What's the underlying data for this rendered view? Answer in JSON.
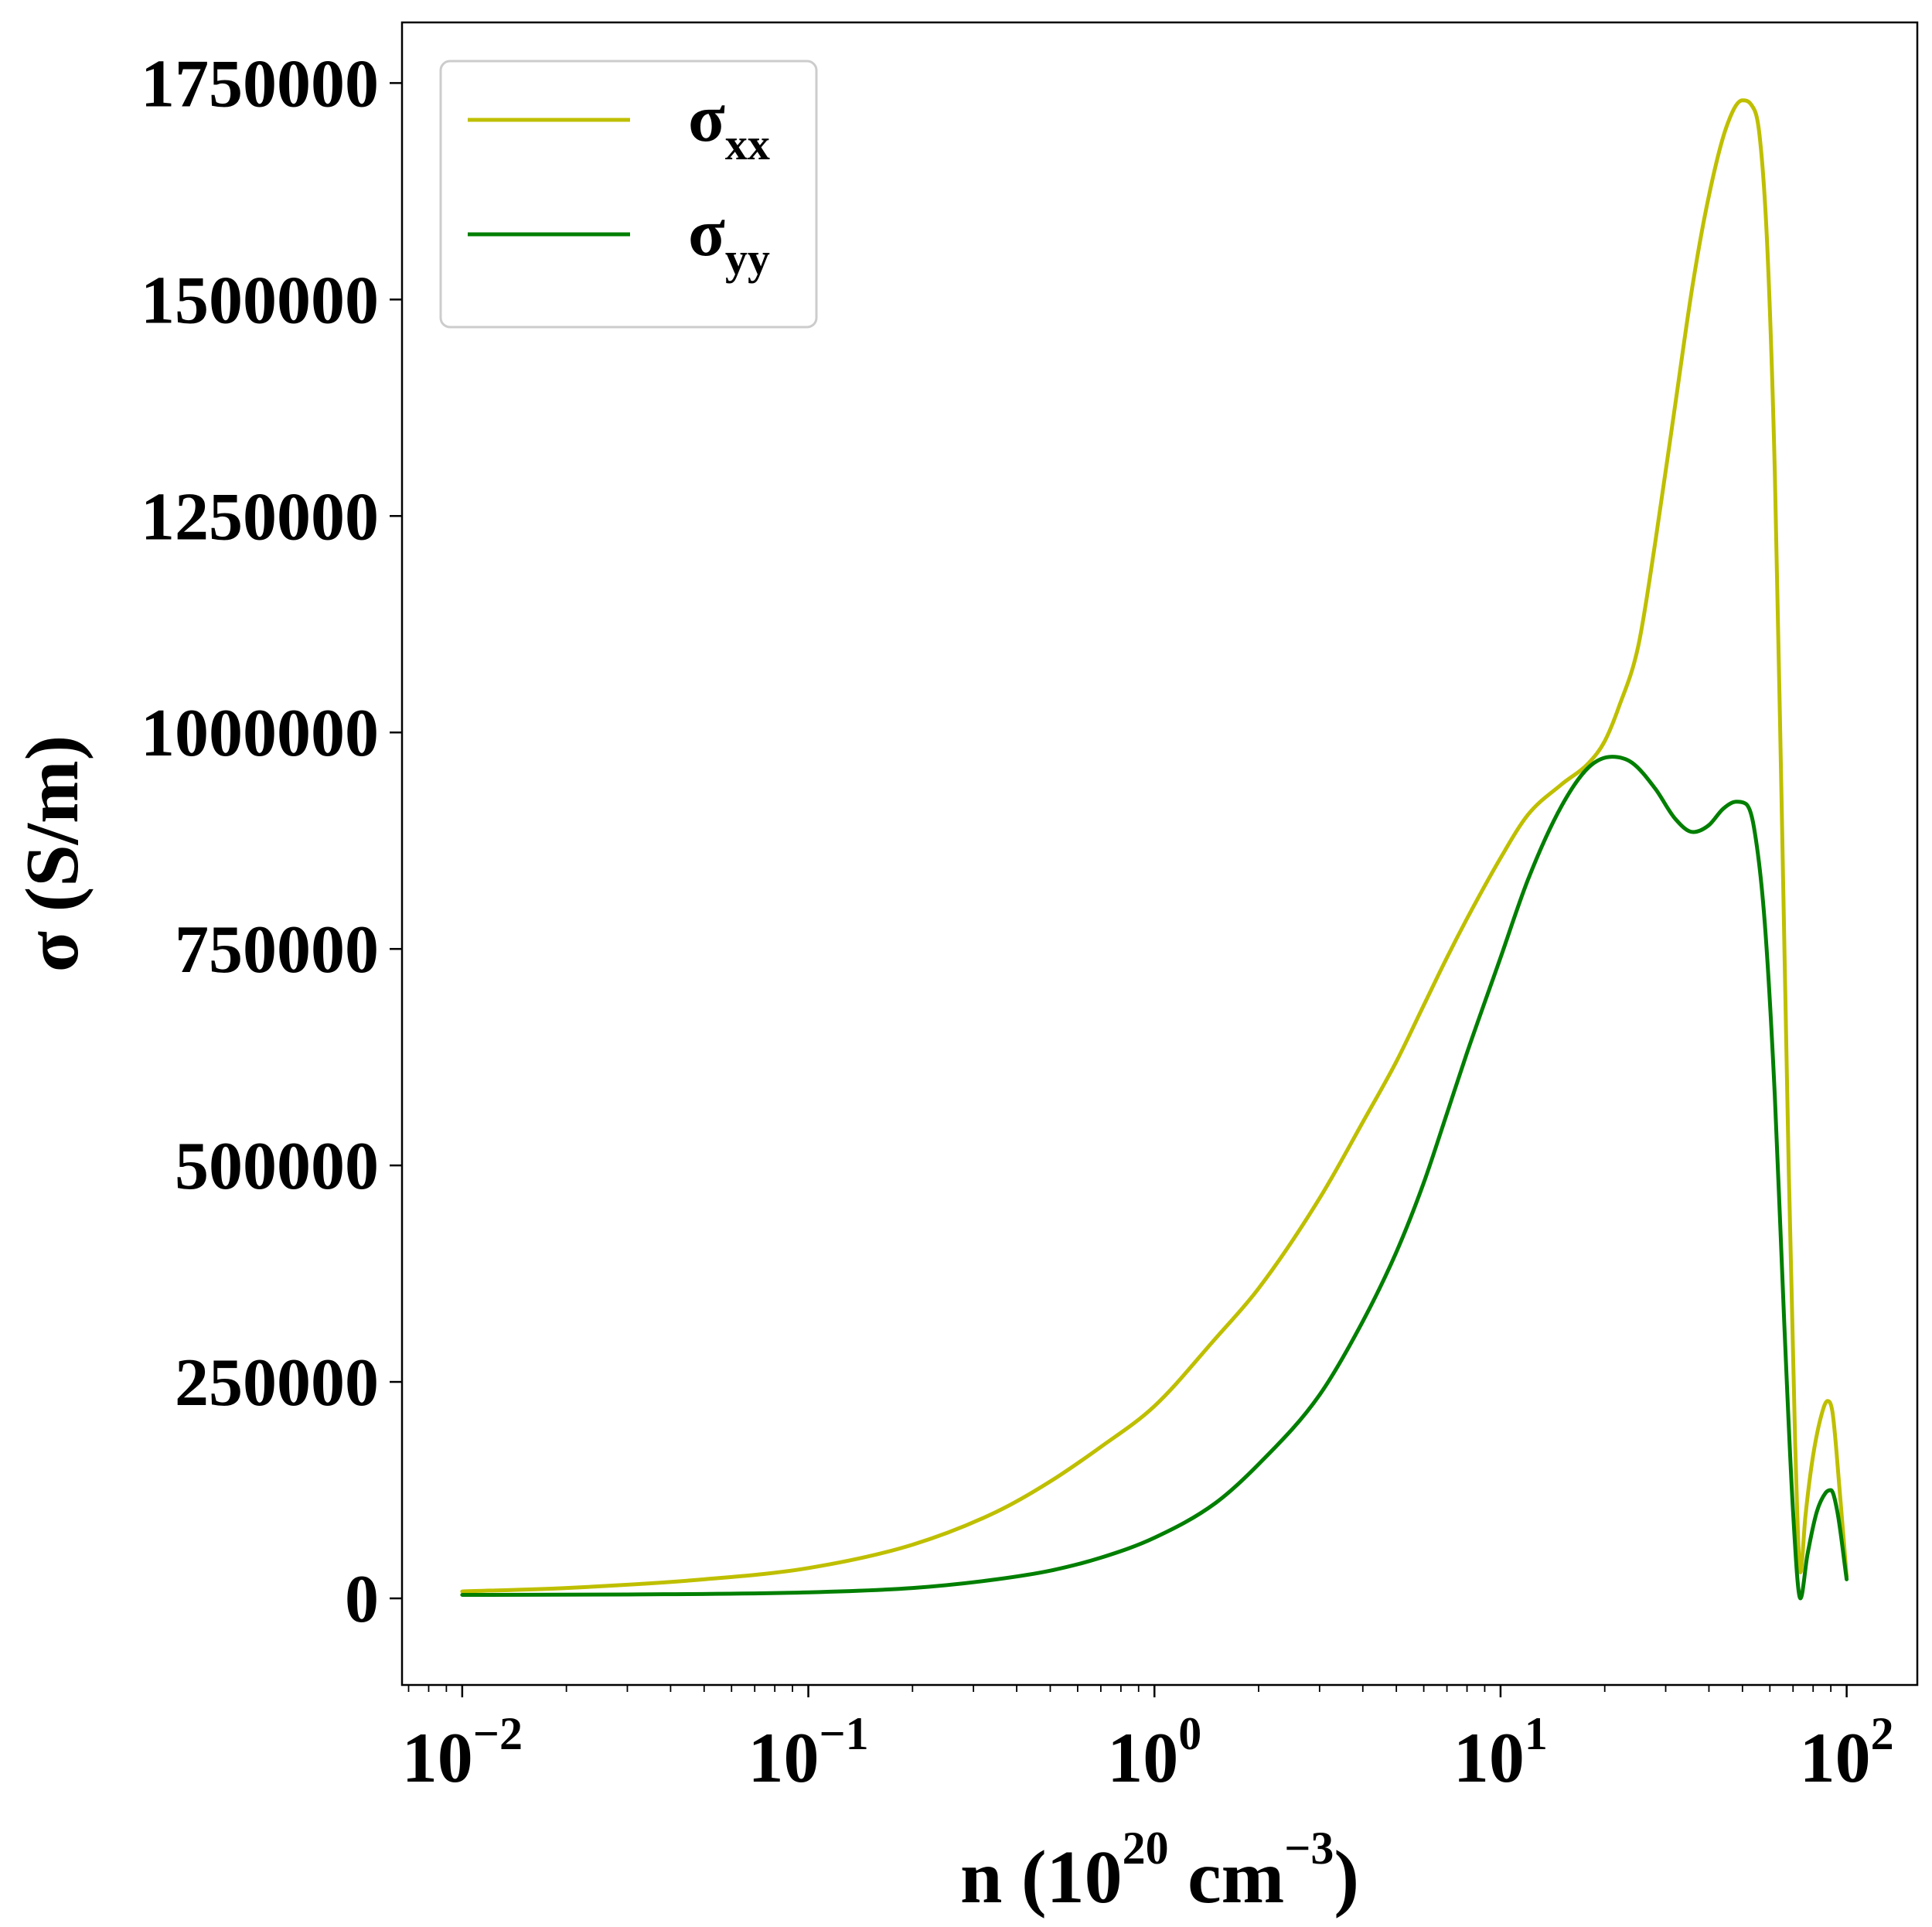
{
  "chart_data": {
    "type": "line",
    "xscale": "log",
    "xlim": [
      0.0067,
      160
    ],
    "ylim": [
      -100000,
      1820000
    ],
    "xlabel": {
      "prefix": "n (10",
      "exp1": "20",
      "middle": " cm",
      "exp2": "−3",
      "suffix": ")"
    },
    "ylabel": "σ (S/m)",
    "xticks": [
      {
        "base": "10",
        "exp": "−2",
        "value": 0.01
      },
      {
        "base": "10",
        "exp": "−1",
        "value": 0.1
      },
      {
        "base": "10",
        "exp": "0",
        "value": 1
      },
      {
        "base": "10",
        "exp": "1",
        "value": 10
      },
      {
        "base": "10",
        "exp": "2",
        "value": 100
      }
    ],
    "yticks": [
      {
        "label": "0",
        "value": 0
      },
      {
        "label": "250000",
        "value": 250000
      },
      {
        "label": "500000",
        "value": 500000
      },
      {
        "label": "750000",
        "value": 750000
      },
      {
        "label": "1000000",
        "value": 1000000
      },
      {
        "label": "1250000",
        "value": 1250000
      },
      {
        "label": "1500000",
        "value": 1500000
      },
      {
        "label": "1750000",
        "value": 1750000
      }
    ],
    "grid": false,
    "legend_position": "top-left",
    "series": [
      {
        "name": "σxx",
        "legend_base": "σ",
        "legend_sub": "xx",
        "color": "#bfbf00",
        "points": [
          [
            0.01,
            8000
          ],
          [
            0.02,
            12000
          ],
          [
            0.05,
            22000
          ],
          [
            0.1,
            35000
          ],
          [
            0.2,
            62000
          ],
          [
            0.35,
            100000
          ],
          [
            0.5,
            135000
          ],
          [
            0.7,
            175000
          ],
          [
            1.0,
            222000
          ],
          [
            1.5,
            300000
          ],
          [
            2.0,
            358000
          ],
          [
            3.0,
            462000
          ],
          [
            4.0,
            550000
          ],
          [
            5.0,
            620000
          ],
          [
            6.0,
            685000
          ],
          [
            7.0,
            740000
          ],
          [
            8.0,
            785000
          ],
          [
            10.0,
            855000
          ],
          [
            12.0,
            905000
          ],
          [
            15.0,
            940000
          ],
          [
            18.0,
            965000
          ],
          [
            20.0,
            990000
          ],
          [
            22.0,
            1030000
          ],
          [
            25.0,
            1100000
          ],
          [
            28.0,
            1220000
          ],
          [
            32.0,
            1380000
          ],
          [
            36.0,
            1520000
          ],
          [
            40.0,
            1620000
          ],
          [
            45.0,
            1700000
          ],
          [
            50.0,
            1730000
          ],
          [
            53.0,
            1725000
          ],
          [
            56.0,
            1690000
          ],
          [
            59.0,
            1560000
          ],
          [
            62.0,
            1300000
          ],
          [
            65.0,
            900000
          ],
          [
            68.0,
            500000
          ],
          [
            71.0,
            180000
          ],
          [
            73.5,
            30000
          ],
          [
            76.0,
            95000
          ],
          [
            80.0,
            165000
          ],
          [
            85.0,
            215000
          ],
          [
            88.0,
            228000
          ],
          [
            91.0,
            215000
          ],
          [
            95.0,
            135000
          ],
          [
            100.0,
            25000
          ]
        ]
      },
      {
        "name": "σyy",
        "legend_base": "σ",
        "legend_sub": "yy",
        "color": "#007f00",
        "points": [
          [
            0.01,
            4000
          ],
          [
            0.03,
            4500
          ],
          [
            0.1,
            7000
          ],
          [
            0.2,
            12000
          ],
          [
            0.35,
            22000
          ],
          [
            0.5,
            32000
          ],
          [
            0.7,
            47000
          ],
          [
            1.0,
            70000
          ],
          [
            1.5,
            110000
          ],
          [
            2.0,
            155000
          ],
          [
            3.0,
            235000
          ],
          [
            4.0,
            320000
          ],
          [
            5.0,
            400000
          ],
          [
            6.0,
            480000
          ],
          [
            7.0,
            560000
          ],
          [
            8.0,
            630000
          ],
          [
            10.0,
            740000
          ],
          [
            12.0,
            830000
          ],
          [
            15.0,
            915000
          ],
          [
            18.0,
            960000
          ],
          [
            21.0,
            972000
          ],
          [
            24.0,
            965000
          ],
          [
            28.0,
            935000
          ],
          [
            32.0,
            900000
          ],
          [
            36.0,
            885000
          ],
          [
            40.0,
            893000
          ],
          [
            44.0,
            912000
          ],
          [
            48.0,
            920000
          ],
          [
            51.0,
            918000
          ],
          [
            54.0,
            890000
          ],
          [
            58.0,
            780000
          ],
          [
            62.0,
            580000
          ],
          [
            66.0,
            320000
          ],
          [
            70.0,
            100000
          ],
          [
            73.5,
            0
          ],
          [
            77.0,
            50000
          ],
          [
            82.0,
            100000
          ],
          [
            87.0,
            122000
          ],
          [
            90.0,
            125000
          ],
          [
            94.0,
            100000
          ],
          [
            100.0,
            22000
          ]
        ]
      }
    ]
  }
}
